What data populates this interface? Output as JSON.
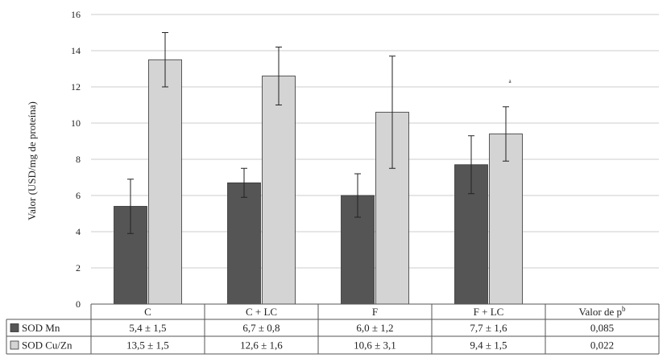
{
  "chart_data": {
    "type": "bar",
    "title": "",
    "xlabel": "",
    "ylabel": "Valor (USD/mg de proteína)",
    "ylim": [
      0,
      16
    ],
    "yticks": [
      0,
      2,
      4,
      6,
      8,
      10,
      12,
      14,
      16
    ],
    "grid": true,
    "categories": [
      "C",
      "C + LC",
      "F",
      "F + LC"
    ],
    "series": [
      {
        "name": "SOD Mn",
        "color": "#555555",
        "values": [
          5.4,
          6.7,
          6.0,
          7.7
        ],
        "errors": [
          1.5,
          0.8,
          1.2,
          1.6
        ],
        "table_values": [
          "5,4 ± 1,5",
          "6,7 ± 0,8",
          "6,0 ± 1,2",
          "7,7 ± 1,6"
        ],
        "p_value": "0,085"
      },
      {
        "name": "SOD Cu/Zn",
        "color": "#d4d4d4",
        "values": [
          13.5,
          12.6,
          10.6,
          9.4
        ],
        "errors": [
          1.5,
          1.6,
          3.1,
          1.5
        ],
        "table_values": [
          "13,5 ± 1,5",
          "12,6 ± 1,6",
          "10,6 ± 3,1",
          "9,4 ± 1,5"
        ],
        "p_value": "0,022"
      }
    ],
    "p_column_header": "Valor de p",
    "p_column_superscript": "b",
    "annotations": [
      {
        "text": "a",
        "category": "F + LC",
        "series": "SOD Cu/Zn"
      }
    ]
  }
}
